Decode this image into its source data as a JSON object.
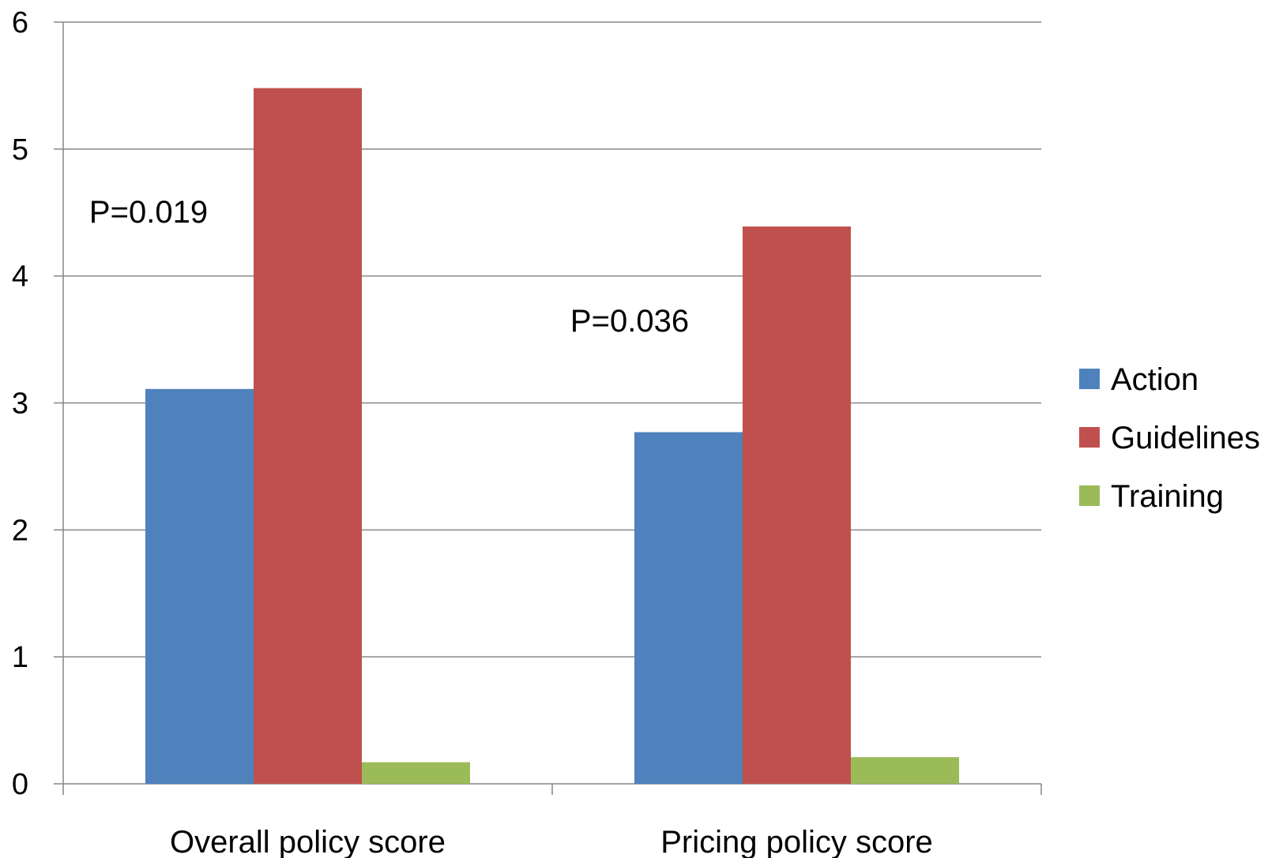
{
  "chart_data": {
    "type": "bar",
    "categories": [
      "Overall policy score",
      "Pricing policy score"
    ],
    "series": [
      {
        "name": "Action",
        "values": [
          3.11,
          2.77
        ],
        "color": "#4F81BD"
      },
      {
        "name": "Guidelines",
        "values": [
          5.48,
          4.39
        ],
        "color": "#C0504D"
      },
      {
        "name": "Training",
        "values": [
          0.17,
          0.21
        ],
        "color": "#9BBB59"
      }
    ],
    "ylim": [
      0,
      6
    ],
    "yticks": [
      0,
      1,
      2,
      3,
      4,
      5,
      6
    ],
    "grid": true,
    "legend_position": "right",
    "annotations": [
      {
        "text": "P=0.019",
        "category": "Overall policy score"
      },
      {
        "text": "P=0.036",
        "category": "Pricing policy score"
      }
    ],
    "title": "",
    "xlabel": "",
    "ylabel": ""
  }
}
